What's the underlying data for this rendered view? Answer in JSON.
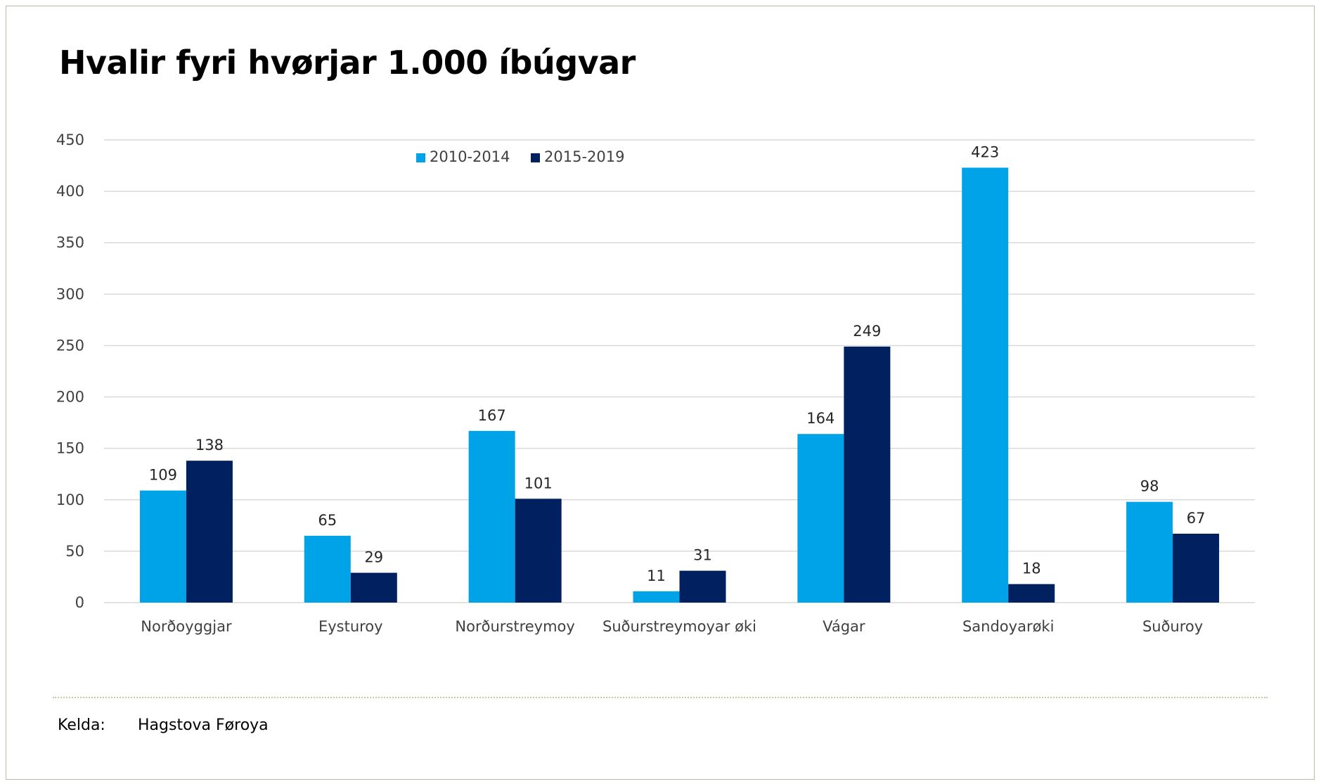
{
  "title": "Hvalir fyri hvørjar 1.000 íbúgvar",
  "source": {
    "label": "Kelda:",
    "value": "Hagstova Føroya"
  },
  "colors": {
    "series1": "#00a3e8",
    "series2": "#002060",
    "grid": "#d9d9d9"
  },
  "chart_data": {
    "type": "bar",
    "title": "Hvalir fyri hvørjar 1.000 íbúgvar",
    "xlabel": "",
    "ylabel": "",
    "ylim": [
      0,
      450
    ],
    "yticks": [
      0,
      50,
      100,
      150,
      200,
      250,
      300,
      350,
      400,
      450
    ],
    "grid": true,
    "legend_position": "top-center",
    "categories": [
      "Norðoyggjar",
      "Eysturoy",
      "Norðurstreymoy",
      "Suðurstreymoyar øki",
      "Vágar",
      "Sandoyarøki",
      "Suðuroy"
    ],
    "series": [
      {
        "name": "2010-2014",
        "values": [
          109,
          65,
          167,
          11,
          164,
          423,
          98
        ]
      },
      {
        "name": "2015-2019",
        "values": [
          138,
          29,
          101,
          31,
          249,
          18,
          67
        ]
      }
    ]
  }
}
